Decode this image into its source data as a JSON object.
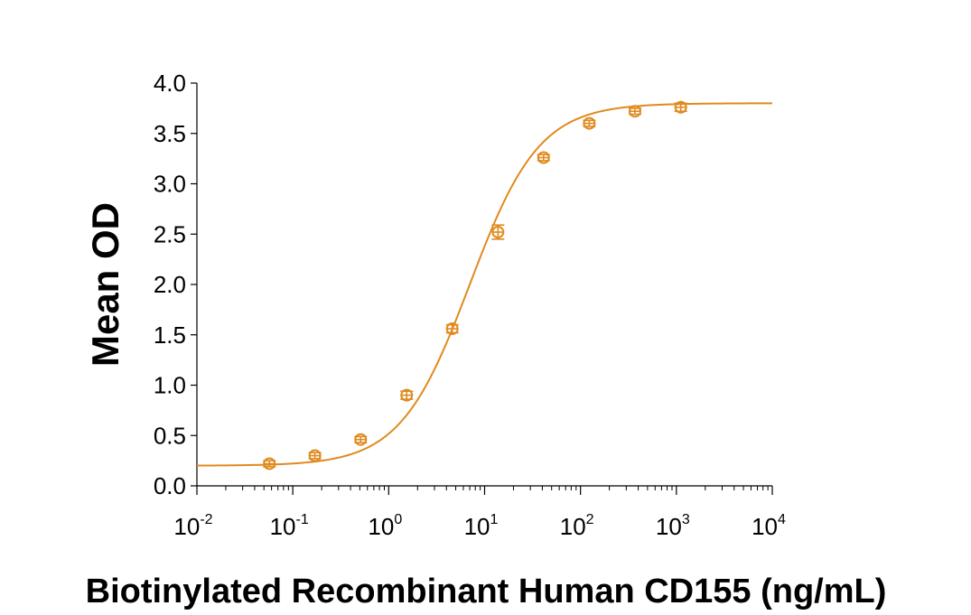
{
  "chart_data": {
    "type": "scatter",
    "title": "",
    "xlabel": "Biotinylated Recombinant Human CD155 (ng/mL)",
    "ylabel": "Mean OD",
    "x_scale": "log10",
    "xlim": [
      0.01,
      10000
    ],
    "ylim": [
      0.0,
      4.0
    ],
    "x_tick_labels": [
      {
        "base": "10",
        "exp": "-2"
      },
      {
        "base": "10",
        "exp": "-1"
      },
      {
        "base": "10",
        "exp": "0"
      },
      {
        "base": "10",
        "exp": "1"
      },
      {
        "base": "10",
        "exp": "2"
      },
      {
        "base": "10",
        "exp": "3"
      },
      {
        "base": "10",
        "exp": "4"
      }
    ],
    "y_tick_labels": [
      "0.0",
      "0.5",
      "1.0",
      "1.5",
      "2.0",
      "2.5",
      "3.0",
      "3.5",
      "4.0"
    ],
    "grid": false,
    "color": "#e08a1e",
    "series": [
      {
        "x": [
          0.057,
          0.17,
          0.51,
          1.54,
          4.6,
          13.8,
          41.2,
          123.5,
          370,
          1111
        ],
        "y": [
          0.22,
          0.3,
          0.46,
          0.9,
          1.56,
          2.52,
          3.26,
          3.6,
          3.72,
          3.76
        ],
        "error": [
          0.03,
          0.03,
          0.03,
          0.04,
          0.04,
          0.07,
          0.03,
          0.03,
          0.03,
          0.04
        ]
      }
    ],
    "fit_curve": {
      "model": "4PL",
      "bottom": 0.2,
      "top": 3.8,
      "ec50": 7.0,
      "hill": 1.2
    }
  }
}
